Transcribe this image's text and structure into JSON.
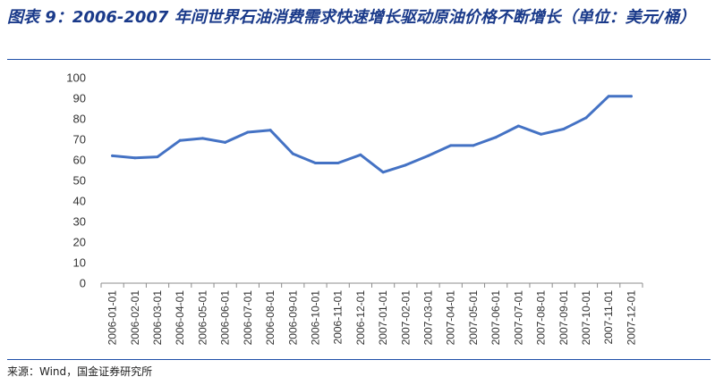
{
  "figure": {
    "title": "图表 9：2006-2007 年间世界石油消费需求快速增长驱动原油价格不断增长（单位：美元/桶）",
    "source": "来源：Wind，国金证券研究所"
  },
  "chart_data": {
    "type": "line",
    "title": "图表 9：2006-2007 年间世界石油消费需求快速增长驱动原油价格不断增长（单位：美元/桶）",
    "xlabel": "",
    "ylabel": "",
    "ylim": [
      0,
      100
    ],
    "yticks": [
      0,
      10,
      20,
      30,
      40,
      50,
      60,
      70,
      80,
      90,
      100
    ],
    "grid": false,
    "legend": "none",
    "line_color": "#4472c4",
    "categories": [
      "2006-01-01",
      "2006-02-01",
      "2006-03-01",
      "2006-04-01",
      "2006-05-01",
      "2006-06-01",
      "2006-07-01",
      "2006-08-01",
      "2006-09-01",
      "2006-10-01",
      "2006-11-01",
      "2006-12-01",
      "2007-01-01",
      "2007-02-01",
      "2007-03-01",
      "2007-04-01",
      "2007-05-01",
      "2007-06-01",
      "2007-07-01",
      "2007-08-01",
      "2007-09-01",
      "2007-10-01",
      "2007-11-01",
      "2007-12-01"
    ],
    "series": [
      {
        "values": [
          62,
          61,
          61.5,
          69.5,
          70.5,
          68.5,
          73.5,
          74.5,
          63,
          58.5,
          58.5,
          62.5,
          54,
          57.5,
          62,
          67,
          67,
          71,
          76.5,
          72.5,
          75,
          80.5,
          91,
          91
        ]
      }
    ]
  }
}
